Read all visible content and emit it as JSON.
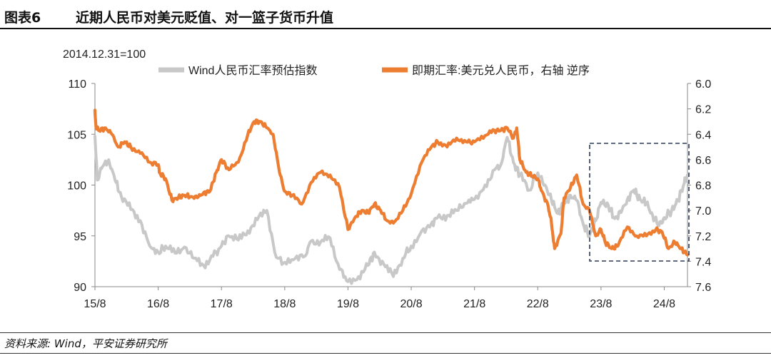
{
  "header": {
    "figure_number": "图表6",
    "title": "近期人民币对美元贬值、对一篮子货币升值"
  },
  "footer": {
    "source": "资料来源: Wind，平安证券研究所"
  },
  "chart_data": {
    "type": "line",
    "title": "近期人民币对美元贬值、对一篮子货币升值",
    "base_note": "2014.12.31=100",
    "x_ticks": [
      "15/8",
      "16/8",
      "17/8",
      "18/8",
      "19/8",
      "20/8",
      "21/8",
      "22/8",
      "23/8",
      "24/8"
    ],
    "x_range": [
      2015.583,
      2024.95
    ],
    "y_left": {
      "range": [
        90,
        110
      ],
      "ticks": [
        "90",
        "95",
        "100",
        "105",
        "110"
      ]
    },
    "y_right": {
      "range": [
        6.0,
        7.6
      ],
      "inverted": true,
      "ticks": [
        "6.0",
        "6.2",
        "6.4",
        "6.6",
        "6.8",
        "7.0",
        "7.2",
        "7.4",
        "7.6"
      ]
    },
    "series": [
      {
        "name": "Wind人民币汇率预估指数",
        "axis": "left",
        "color": "#c8c8c8",
        "x": [
          2015.583,
          2015.62,
          2015.7,
          2015.8,
          2015.9,
          2016.0,
          2016.15,
          2016.3,
          2016.45,
          2016.583,
          2016.7,
          2016.85,
          2017.0,
          2017.15,
          2017.3,
          2017.45,
          2017.583,
          2017.7,
          2017.85,
          2018.0,
          2018.15,
          2018.3,
          2018.45,
          2018.583,
          2018.75,
          2018.9,
          2019.0,
          2019.15,
          2019.3,
          2019.45,
          2019.583,
          2019.75,
          2019.9,
          2020.0,
          2020.15,
          2020.3,
          2020.45,
          2020.583,
          2020.75,
          2020.9,
          2021.0,
          2021.15,
          2021.3,
          2021.45,
          2021.583,
          2021.75,
          2021.9,
          2022.0,
          2022.1,
          2022.2,
          2022.3,
          2022.45,
          2022.583,
          2022.7,
          2022.8,
          2022.9,
          2023.0,
          2023.1,
          2023.2,
          2023.3,
          2023.4,
          2023.5,
          2023.583,
          2023.7,
          2023.8,
          2023.9,
          2024.0,
          2024.1,
          2024.2,
          2024.3,
          2024.4,
          2024.5,
          2024.583,
          2024.7,
          2024.8,
          2024.9,
          2024.95
        ],
        "values": [
          104.8,
          100.5,
          101.8,
          102.5,
          100.5,
          98.9,
          97.6,
          96.5,
          94.0,
          93.4,
          94.0,
          93.3,
          93.9,
          92.8,
          92.1,
          93.0,
          94.0,
          95.0,
          94.6,
          95.5,
          96.6,
          97.5,
          92.9,
          92.4,
          92.8,
          93.0,
          94.5,
          94.4,
          94.8,
          91.7,
          90.5,
          91.0,
          92.1,
          93.4,
          92.2,
          91.0,
          92.8,
          94.0,
          95.5,
          96.2,
          96.8,
          97.0,
          97.5,
          98.2,
          98.6,
          100.0,
          101.5,
          102.0,
          104.7,
          102.2,
          101.0,
          99.5,
          101.2,
          100.0,
          98.5,
          97.2,
          98.2,
          99.0,
          98.5,
          96.2,
          95.0,
          96.5,
          98.3,
          98.0,
          96.7,
          97.3,
          98.6,
          99.5,
          98.6,
          98.2,
          97.0,
          96.0,
          96.8,
          97.5,
          98.5,
          100.2,
          101.0
        ]
      },
      {
        "name": "即期汇率:美元兑人民币，右轴 逆序",
        "axis": "right",
        "color": "#ed7d31",
        "x": [
          2015.583,
          2015.6,
          2015.65,
          2015.75,
          2015.85,
          2015.95,
          2016.05,
          2016.15,
          2016.3,
          2016.45,
          2016.583,
          2016.6,
          2016.7,
          2016.8,
          2016.9,
          2017.0,
          2017.1,
          2017.2,
          2017.3,
          2017.4,
          2017.5,
          2017.583,
          2017.7,
          2017.85,
          2018.0,
          2018.1,
          2018.2,
          2018.3,
          2018.4,
          2018.5,
          2018.583,
          2018.7,
          2018.85,
          2019.0,
          2019.15,
          2019.3,
          2019.45,
          2019.583,
          2019.7,
          2019.8,
          2019.9,
          2020.0,
          2020.1,
          2020.2,
          2020.3,
          2020.45,
          2020.583,
          2020.75,
          2020.9,
          2021.0,
          2021.15,
          2021.3,
          2021.45,
          2021.583,
          2021.75,
          2021.9,
          2022.0,
          2022.1,
          2022.2,
          2022.25,
          2022.3,
          2022.4,
          2022.5,
          2022.583,
          2022.65,
          2022.75,
          2022.8,
          2022.85,
          2022.95,
          2023.0,
          2023.1,
          2023.2,
          2023.3,
          2023.4,
          2023.5,
          2023.583,
          2023.65,
          2023.75,
          2023.85,
          2024.0,
          2024.15,
          2024.3,
          2024.45,
          2024.55,
          2024.65,
          2024.75,
          2024.85,
          2024.95
        ],
        "values": [
          6.21,
          6.35,
          6.37,
          6.35,
          6.4,
          6.5,
          6.46,
          6.5,
          6.55,
          6.62,
          6.64,
          6.7,
          6.75,
          6.92,
          6.9,
          6.88,
          6.89,
          6.9,
          6.86,
          6.85,
          6.7,
          6.6,
          6.68,
          6.62,
          6.4,
          6.3,
          6.3,
          6.35,
          6.4,
          6.7,
          6.85,
          6.88,
          6.95,
          6.78,
          6.7,
          6.72,
          6.82,
          7.15,
          7.05,
          7.0,
          7.02,
          6.95,
          7.0,
          7.08,
          7.1,
          7.0,
          6.87,
          6.62,
          6.5,
          6.46,
          6.5,
          6.43,
          6.46,
          6.46,
          6.41,
          6.37,
          6.37,
          6.35,
          6.43,
          6.35,
          6.6,
          6.7,
          6.73,
          6.75,
          6.85,
          6.97,
          7.1,
          7.3,
          7.18,
          6.9,
          6.82,
          6.72,
          6.95,
          7.0,
          7.2,
          7.15,
          7.25,
          7.3,
          7.28,
          7.13,
          7.2,
          7.2,
          7.15,
          7.17,
          7.3,
          7.25,
          7.3,
          7.35
        ]
      }
    ],
    "annotation": "dashed-box-recent-period"
  }
}
